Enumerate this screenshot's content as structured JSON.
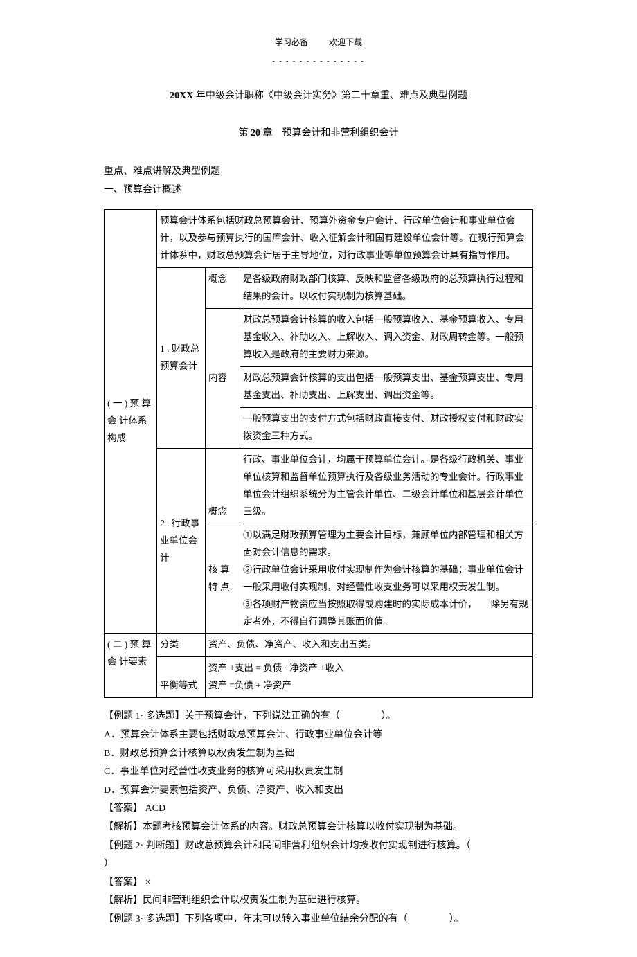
{
  "header": {
    "left": "学习必备",
    "right": "欢迎下载",
    "dashes": "- - - - - - - - - - - - - -"
  },
  "title": {
    "prefix_bold": "20XX",
    "rest": " 年中级会计职称《中级会计实务》第二十章重、难点及典型例题"
  },
  "subtitle": {
    "prefix": "第 ",
    "num_bold": "20",
    "rest": " 章　预算会计和非营利组织会计"
  },
  "intro1": "重点、难点讲解及典型例题",
  "intro2": "一、预算会计概述",
  "table": {
    "row1_a": "( 一 ) 预 算 会 计体系构成",
    "row1_top": "预算会计体系包括财政总预算会计、预算外资金专户会计、行政单位会计和事业单位会计，以及参与预算执行的国库会计、收入征解会计和国有建设单位会计等。在现行预算会计体系中，财政总预算会计居于主导地位，对行政事业等单位预算会计具有指导作用。",
    "row2_b": "1 . 财政总预算会计",
    "row2_c": "概念",
    "row2_d": "是各级政府财政部门核算、反映和监督各级政府的总预算执行过程和结果的会计。以收付实现制为核算基础。",
    "row3_c": "内容",
    "row3_d1": "财政总预算会计核算的收入包括一般预算收入、基金预算收入、专用基金收入、补助收入、上解收入、调入资金、财政周转金等。一般预算收入是政府的主要财力来源。",
    "row3_d2": "财政总预算会计核算的支出包括一般预算支出、基金预算支出、专用基金支出、补助支出、上解支出、调出资金等。",
    "row3_d3": "一般预算支出的支付方式包括财政直接支付、财政授权支付和财政实拨资金三种方式。",
    "row4_b": "2 . 行政事业单位会计",
    "row4_c": "概念",
    "row4_d": "行政、事业单位会计，均属于预算单位会计。是各级行政机关、事业单位核算和监督单位预算执行及各级业务活动的专业会计。行政事业单位会计组织系统分为主管会计单位、二级会计单位和基层会计单位三级。",
    "row5_c": "核 算 特 点",
    "row5_d": "①以满足财政预算管理为主要会计目标，兼顾单位内部管理和相关方面对会计信息的需求。\n②行政单位会计采用收付实现制作为会计核算的基础；事业单位会计一般采用收付实现制，对经营性收支业务可以采用权责发生制。\n③各项财产物资应当按照取得或购建时的实际成本计价，　　除另有规定者外，不得自行调整其账面价值。",
    "row6_a": "( 二 ) 预 算 会 计要素",
    "row6_b": "分类",
    "row6_d": "资产、负债、净资产、收入和支出五类。",
    "row7_b": "平衡等式",
    "row7_d": "资产 +支出 = 负债 +净资产 +收入\n资产 =负债 + 净资产"
  },
  "q": {
    "q1_stem": "【例题 1· 多选题】关于预算会计，下列说法正确的有（",
    "q1_tail": "）。",
    "q1_a": "A．预算会计体系主要包括财政总预算会计、行政事业单位会计等",
    "q1_b": "B．财政总预算会计核算以权责发生制为基础",
    "q1_c": "C．事业单位对经营性收支业务的核算可采用权责发生制",
    "q1_d": "D．预算会计要素包括资产、负债、净资产、收入和支出",
    "q1_ans": "【答案】 ACD",
    "q1_exp": "【解析】本题考核预算会计体系的内容。财政总预算会计核算以收付实现制为基础。",
    "q2_stem": "【例题 2· 判断题】财政总预算会计和民间非营利组织会计均按收付实现制进行核算。（",
    "q2_tail": "）",
    "q2_ans": "【答案】 ×",
    "q2_exp": "【解析】民间非营利组织会计以权责发生制为基础进行核算。",
    "q3_stem": "【例题 3· 多选题】下列各项中，年末可以转入事业单位结余分配的有（",
    "q3_tail": "）。"
  }
}
